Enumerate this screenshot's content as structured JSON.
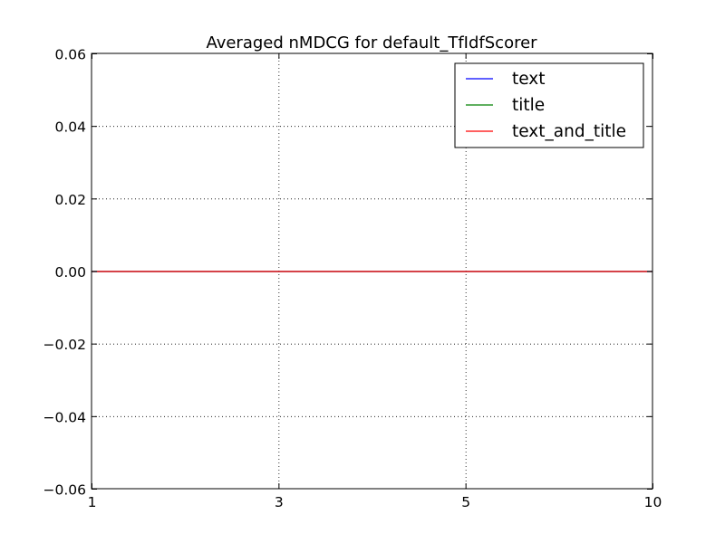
{
  "chart_data": {
    "type": "line",
    "title": "Averaged nMDCG for default_TfIdfScorer",
    "xlabel": "",
    "ylabel": "",
    "x": [
      "1",
      "3",
      "5",
      "10"
    ],
    "xticks": [
      "1",
      "3",
      "5",
      "10"
    ],
    "yticks": [
      "0.06",
      "0.04",
      "0.02",
      "0.00",
      "−0.02",
      "−0.04",
      "−0.06"
    ],
    "ylim": [
      -0.06,
      0.06
    ],
    "grid": true,
    "legend_position": "upper right",
    "series": [
      {
        "name": "text",
        "color": "#0000ff",
        "values": [
          0,
          0,
          0,
          0
        ]
      },
      {
        "name": "title",
        "color": "#008000",
        "values": [
          0,
          0,
          0,
          0
        ]
      },
      {
        "name": "text_and_title",
        "color": "#ff0000",
        "values": [
          0,
          0,
          0,
          0
        ]
      }
    ]
  }
}
